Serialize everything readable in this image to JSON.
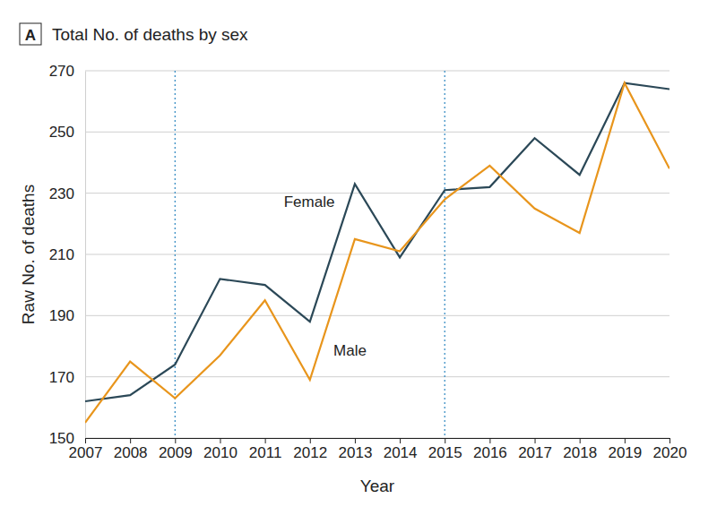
{
  "chart_data": {
    "type": "line",
    "panel_label": "A",
    "title": "Total No. of deaths by sex",
    "x_label": "Year",
    "y_label": "Raw No. of deaths",
    "x": [
      2007,
      2008,
      2009,
      2010,
      2011,
      2012,
      2013,
      2014,
      2015,
      2016,
      2017,
      2018,
      2019,
      2020
    ],
    "series": [
      {
        "name": "Female",
        "color": "#2b4857",
        "values": [
          162,
          164,
          174,
          202,
          200,
          188,
          233,
          209,
          231,
          232,
          248,
          236,
          266,
          264
        ]
      },
      {
        "name": "Male",
        "color": "#e8951c",
        "values": [
          155,
          175,
          163,
          177,
          195,
          169,
          215,
          211,
          228,
          239,
          225,
          217,
          266,
          238
        ]
      }
    ],
    "xlim": [
      2007,
      2020
    ],
    "xticks": [
      2007,
      2008,
      2009,
      2010,
      2011,
      2012,
      2013,
      2014,
      2015,
      2016,
      2017,
      2018,
      2019,
      2020
    ],
    "ylim": [
      150,
      270
    ],
    "yticks": [
      150,
      170,
      190,
      210,
      230,
      250,
      270
    ],
    "reference_lines": [
      2009,
      2015
    ],
    "grid": "y"
  }
}
